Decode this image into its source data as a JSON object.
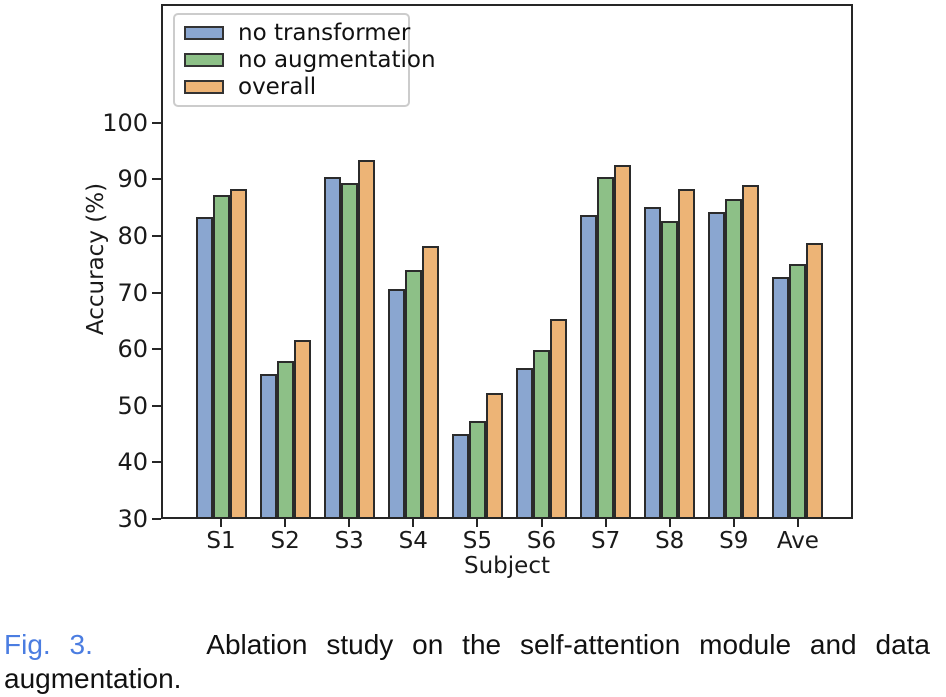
{
  "figure": {
    "caption_label": "Fig. 3.",
    "caption_line1": "Ablation study on the self-attention module and data",
    "caption_line2": "augmentation.",
    "caption_label_color": "#4b7de1",
    "caption_text_color": "#111111"
  },
  "chart_data": {
    "type": "bar",
    "title": "",
    "xlabel": "Subject",
    "ylabel": "Accuracy (%)",
    "categories": [
      "S1",
      "S2",
      "S3",
      "S4",
      "S5",
      "S6",
      "S7",
      "S8",
      "S9",
      "Ave"
    ],
    "series": [
      {
        "name": "no transformer",
        "color": "#8aa6d0",
        "values": [
          83.4,
          55.7,
          90.4,
          70.6,
          45.0,
          56.6,
          83.8,
          85.1,
          84.2,
          72.7
        ]
      },
      {
        "name": "no augmentation",
        "color": "#8dc087",
        "values": [
          87.2,
          57.9,
          89.3,
          74.0,
          47.4,
          59.8,
          90.4,
          82.7,
          86.5,
          75.0
        ]
      },
      {
        "name": "overall",
        "color": "#edb476",
        "values": [
          88.3,
          61.6,
          93.5,
          78.2,
          52.3,
          65.4,
          92.5,
          88.3,
          89.0,
          78.7
        ]
      }
    ],
    "ylim": [
      30,
      121
    ],
    "yticks": [
      30,
      40,
      50,
      60,
      70,
      80,
      90,
      100
    ],
    "bar_edge_color": "#2b2b2b",
    "axis_color": "#262626",
    "legend_position": "upper left",
    "grid": false
  }
}
